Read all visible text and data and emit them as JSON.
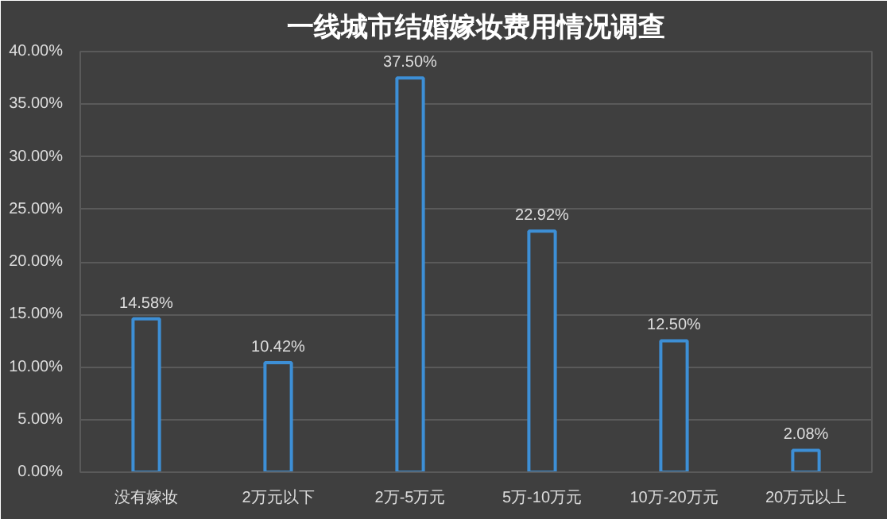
{
  "chart_data": {
    "type": "bar",
    "title": "一线城市结婚嫁妆费用情况调查",
    "categories": [
      "没有嫁妆",
      "2万元以下",
      "2万-5万元",
      "5万-10万元",
      "10万-20万元",
      "20万元以上"
    ],
    "values": [
      14.58,
      10.42,
      37.5,
      22.92,
      12.5,
      2.08
    ],
    "value_labels": [
      "14.58%",
      "10.42%",
      "37.50%",
      "22.92%",
      "12.50%",
      "2.08%"
    ],
    "color": "#3d8fd6",
    "ylim": [
      0,
      40
    ],
    "yticks": [
      {
        "value": 0,
        "label": "0.00%"
      },
      {
        "value": 5,
        "label": "5.00%"
      },
      {
        "value": 10,
        "label": "10.00%"
      },
      {
        "value": 15,
        "label": "15.00%"
      },
      {
        "value": 20,
        "label": "20.00%"
      },
      {
        "value": 25,
        "label": "25.00%"
      },
      {
        "value": 30,
        "label": "30.00%"
      },
      {
        "value": 35,
        "label": "35.00%"
      },
      {
        "value": 40,
        "label": "40.00%"
      }
    ],
    "grid": "y"
  }
}
